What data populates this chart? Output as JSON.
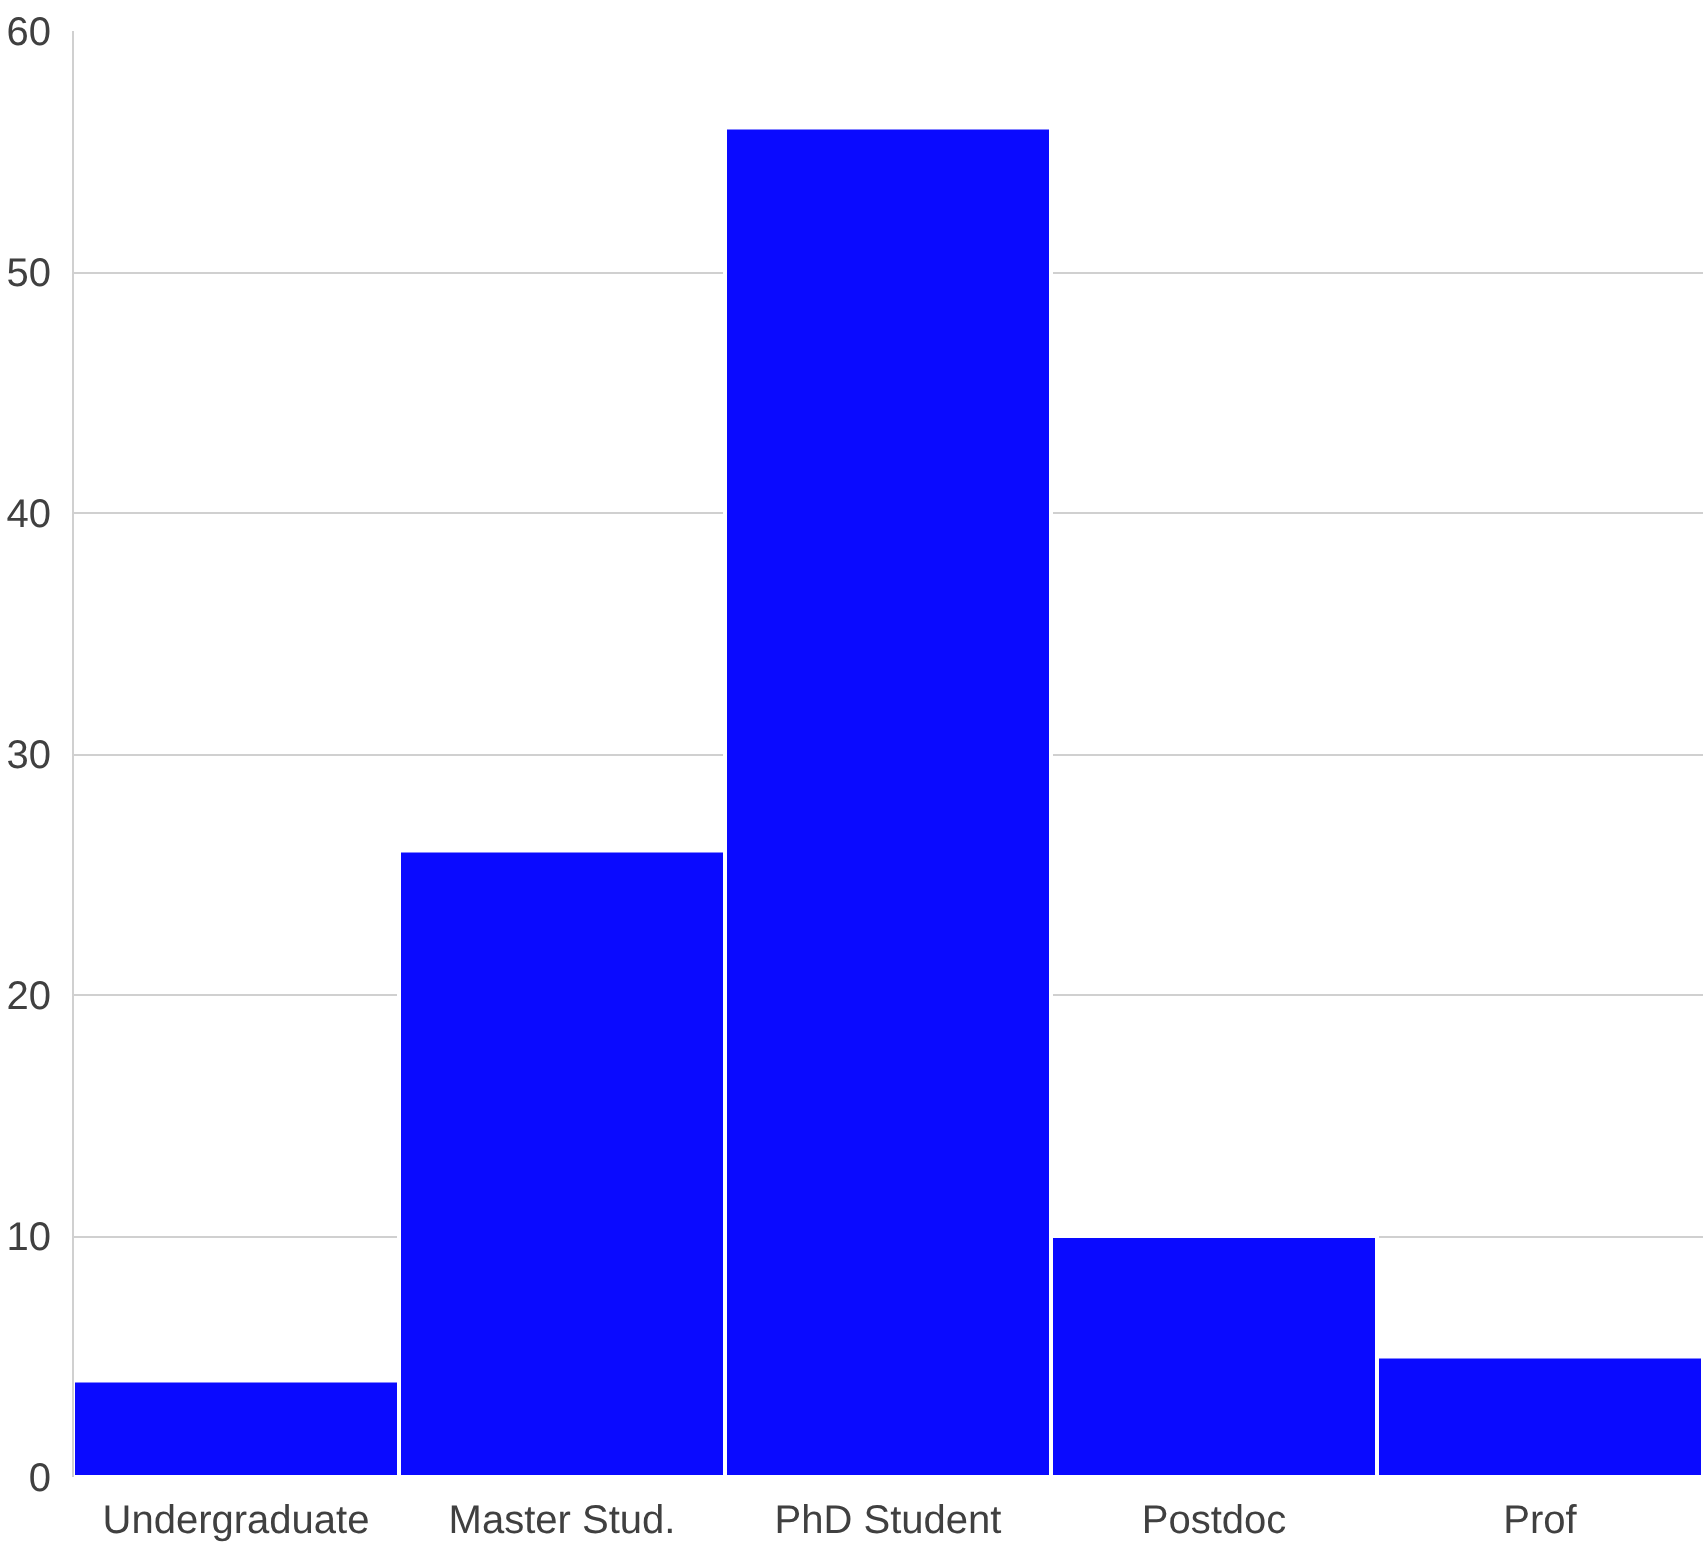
{
  "chart_data": {
    "type": "bar",
    "categories": [
      "Undergraduate",
      "Master Stud.",
      "PhD Student",
      "Postdoc",
      "Prof"
    ],
    "values": [
      4,
      26,
      56,
      10,
      5
    ],
    "color": "#0a0aff",
    "ylim": [
      0,
      60
    ],
    "yticks": [
      0,
      10,
      20,
      30,
      40,
      50,
      60
    ],
    "grid": "y"
  }
}
